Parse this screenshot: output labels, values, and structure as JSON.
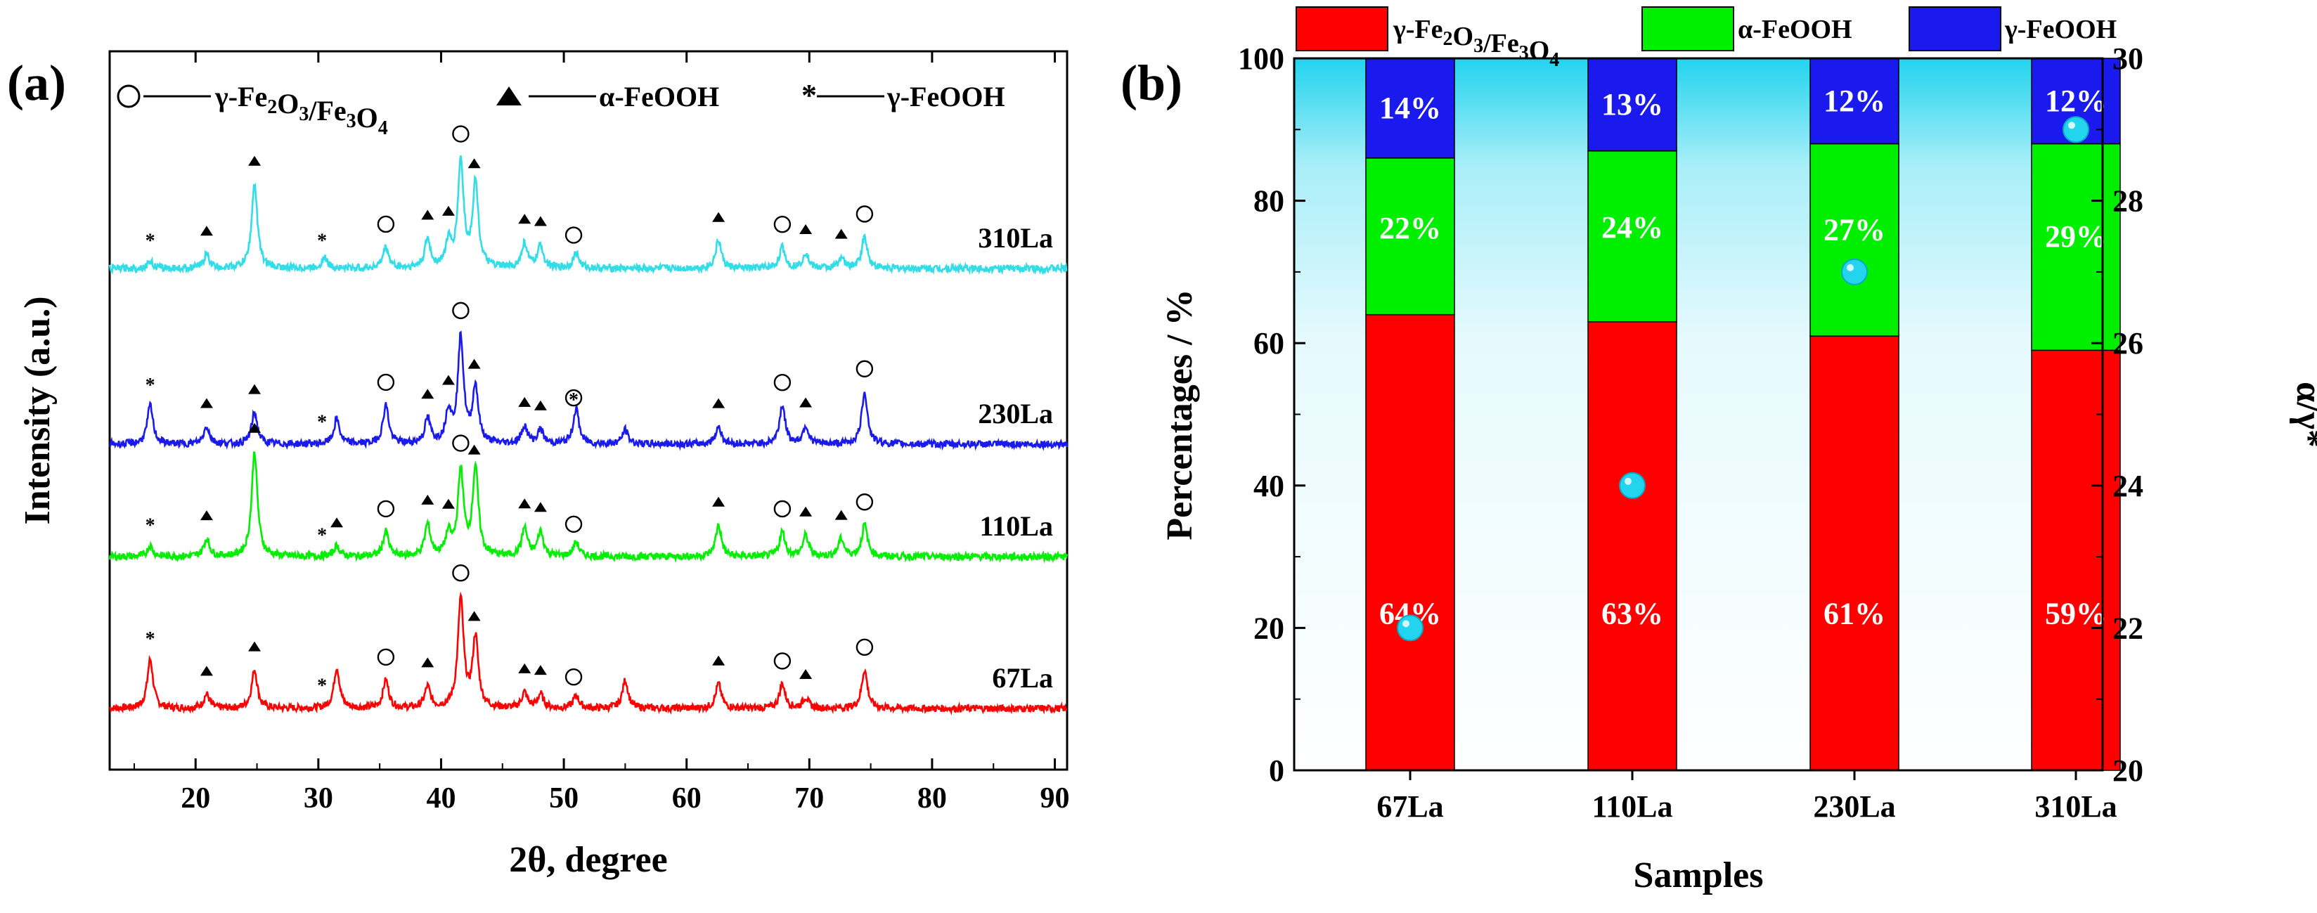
{
  "chart_data": [
    {
      "panel": "(a)",
      "type": "line",
      "xlabel": "2θ, degree",
      "ylabel": "Intensity (a.u.)",
      "xlim": [
        13,
        91
      ],
      "xticks": [
        20,
        30,
        40,
        50,
        60,
        70,
        80,
        90
      ],
      "legend": [
        {
          "symbol": "circle",
          "label": "γ-Fe2O3/Fe3O4"
        },
        {
          "symbol": "triangle",
          "label": "α-FeOOH"
        },
        {
          "symbol": "star",
          "label": "γ-FeOOH"
        }
      ],
      "peak_positions": {
        "circle": [
          35.5,
          41.6,
          50.8,
          67.8,
          74.5
        ],
        "triangle": [
          20.9,
          24.8,
          38.9,
          40.6,
          42.7,
          46.8,
          48.1,
          62.6,
          69.7,
          72.6
        ],
        "star": [
          16.3,
          30.3
        ]
      },
      "series": [
        {
          "name": "67La",
          "color": "#ff0000",
          "offset": 0,
          "peaks": [
            [
              16.3,
              70
            ],
            [
              20.9,
              20
            ],
            [
              24.8,
              55
            ],
            [
              31.5,
              58
            ],
            [
              35.5,
              40
            ],
            [
              38.9,
              30
            ],
            [
              41.6,
              155
            ],
            [
              42.8,
              100
            ],
            [
              46.8,
              22
            ],
            [
              48.1,
              20
            ],
            [
              51.0,
              18
            ],
            [
              55.0,
              40
            ],
            [
              62.6,
              35
            ],
            [
              67.8,
              35
            ],
            [
              69.7,
              15
            ],
            [
              74.5,
              55
            ]
          ],
          "markers": [
            {
              "s": "star",
              "x": 16.3
            },
            {
              "s": "triangle",
              "x": 20.9
            },
            {
              "s": "triangle",
              "x": 24.8
            },
            {
              "s": "star",
              "x": 30.3
            },
            {
              "s": "circle",
              "x": 35.5
            },
            {
              "s": "triangle",
              "x": 38.9
            },
            {
              "s": "circle",
              "x": 41.6
            },
            {
              "s": "triangle",
              "x": 42.7
            },
            {
              "s": "triangle",
              "x": 46.8
            },
            {
              "s": "triangle",
              "x": 48.1
            },
            {
              "s": "circle",
              "x": 50.8
            },
            {
              "s": "triangle",
              "x": 62.6
            },
            {
              "s": "circle",
              "x": 67.8
            },
            {
              "s": "triangle",
              "x": 69.7
            },
            {
              "s": "circle",
              "x": 74.5
            }
          ]
        },
        {
          "name": "110La",
          "color": "#00ee00",
          "offset": 1,
          "peaks": [
            [
              16.3,
              15
            ],
            [
              20.9,
              25
            ],
            [
              24.8,
              150
            ],
            [
              31.5,
              15
            ],
            [
              35.5,
              35
            ],
            [
              38.9,
              45
            ],
            [
              40.6,
              30
            ],
            [
              41.6,
              120
            ],
            [
              42.8,
              125
            ],
            [
              46.8,
              40
            ],
            [
              48.1,
              35
            ],
            [
              51.0,
              20
            ],
            [
              62.6,
              45
            ],
            [
              67.8,
              35
            ],
            [
              69.7,
              30
            ],
            [
              72.6,
              25
            ],
            [
              74.5,
              45
            ]
          ],
          "markers": [
            {
              "s": "star",
              "x": 16.3
            },
            {
              "s": "triangle",
              "x": 20.9
            },
            {
              "s": "triangle",
              "x": 24.8
            },
            {
              "s": "star",
              "x": 30.3
            },
            {
              "s": "triangle",
              "x": 31.5
            },
            {
              "s": "circle",
              "x": 35.5
            },
            {
              "s": "triangle",
              "x": 38.9
            },
            {
              "s": "triangle",
              "x": 40.6
            },
            {
              "s": "circle",
              "x": 41.6
            },
            {
              "s": "triangle",
              "x": 42.7
            },
            {
              "s": "triangle",
              "x": 46.8
            },
            {
              "s": "triangle",
              "x": 48.1
            },
            {
              "s": "circle",
              "x": 50.8
            },
            {
              "s": "triangle",
              "x": 62.6
            },
            {
              "s": "circle",
              "x": 67.8
            },
            {
              "s": "triangle",
              "x": 69.7
            },
            {
              "s": "triangle",
              "x": 72.6
            },
            {
              "s": "circle",
              "x": 74.5
            }
          ]
        },
        {
          "name": "230La",
          "color": "#1a1aee",
          "offset": 2,
          "peaks": [
            [
              16.3,
              55
            ],
            [
              20.9,
              25
            ],
            [
              24.8,
              45
            ],
            [
              31.5,
              35
            ],
            [
              35.5,
              55
            ],
            [
              38.9,
              35
            ],
            [
              40.6,
              45
            ],
            [
              41.6,
              150
            ],
            [
              42.8,
              80
            ],
            [
              46.8,
              25
            ],
            [
              48.1,
              20
            ],
            [
              51.0,
              50
            ],
            [
              55.0,
              20
            ],
            [
              62.6,
              25
            ],
            [
              67.8,
              55
            ],
            [
              69.7,
              25
            ],
            [
              74.5,
              75
            ]
          ],
          "markers": [
            {
              "s": "star",
              "x": 16.3
            },
            {
              "s": "triangle",
              "x": 20.9
            },
            {
              "s": "triangle",
              "x": 24.8
            },
            {
              "s": "star",
              "x": 30.3
            },
            {
              "s": "circle",
              "x": 35.5
            },
            {
              "s": "triangle",
              "x": 38.9
            },
            {
              "s": "triangle",
              "x": 40.6
            },
            {
              "s": "circle",
              "x": 41.6
            },
            {
              "s": "triangle",
              "x": 42.7
            },
            {
              "s": "triangle",
              "x": 46.8
            },
            {
              "s": "triangle",
              "x": 48.1
            },
            {
              "s": "circle",
              "x": 50.8
            },
            {
              "s": "star",
              "x": 50.8
            },
            {
              "s": "triangle",
              "x": 62.6
            },
            {
              "s": "circle",
              "x": 67.8
            },
            {
              "s": "triangle",
              "x": 69.7
            },
            {
              "s": "circle",
              "x": 74.5
            }
          ]
        },
        {
          "name": "310La",
          "color": "#33dde8",
          "offset": 3,
          "peaks": [
            [
              16.3,
              10
            ],
            [
              20.9,
              20
            ],
            [
              24.8,
              120
            ],
            [
              30.5,
              15
            ],
            [
              35.5,
              30
            ],
            [
              38.9,
              40
            ],
            [
              40.6,
              35
            ],
            [
              41.6,
              150
            ],
            [
              42.8,
              120
            ],
            [
              46.8,
              35
            ],
            [
              48.1,
              32
            ],
            [
              51.0,
              22
            ],
            [
              62.6,
              40
            ],
            [
              67.8,
              30
            ],
            [
              69.7,
              22
            ],
            [
              72.6,
              15
            ],
            [
              74.5,
              45
            ]
          ],
          "markers": [
            {
              "s": "star",
              "x": 16.3
            },
            {
              "s": "triangle",
              "x": 20.9
            },
            {
              "s": "triangle",
              "x": 24.8
            },
            {
              "s": "star",
              "x": 30.3
            },
            {
              "s": "circle",
              "x": 35.5
            },
            {
              "s": "triangle",
              "x": 38.9
            },
            {
              "s": "triangle",
              "x": 40.6
            },
            {
              "s": "circle",
              "x": 41.6
            },
            {
              "s": "triangle",
              "x": 42.7
            },
            {
              "s": "triangle",
              "x": 46.8
            },
            {
              "s": "triangle",
              "x": 48.1
            },
            {
              "s": "circle",
              "x": 50.8
            },
            {
              "s": "triangle",
              "x": 62.6
            },
            {
              "s": "circle",
              "x": 67.8
            },
            {
              "s": "triangle",
              "x": 69.7
            },
            {
              "s": "triangle",
              "x": 72.6
            },
            {
              "s": "circle",
              "x": 74.5
            }
          ]
        }
      ]
    },
    {
      "panel": "(b)",
      "type": "bar",
      "stacked": true,
      "xlabel": "Samples",
      "ylabel": "Percentages / %",
      "y2label": "α/γ*",
      "ylim": [
        0,
        100
      ],
      "yticks": [
        0,
        20,
        40,
        60,
        80,
        100
      ],
      "y2lim": [
        20,
        30
      ],
      "y2ticks": [
        20,
        22,
        24,
        26,
        28,
        30
      ],
      "categories": [
        "67La",
        "110La",
        "230La",
        "310La"
      ],
      "series": [
        {
          "name": "γ-Fe2O3/Fe3O4",
          "color": "#ff0000",
          "values": [
            64,
            63,
            61,
            59
          ],
          "labels": [
            "64%",
            "63%",
            "61%",
            "59%"
          ]
        },
        {
          "name": "α-FeOOH",
          "color": "#00ee00",
          "values": [
            22,
            24,
            27,
            29
          ],
          "labels": [
            "22%",
            "24%",
            "27%",
            "29%"
          ]
        },
        {
          "name": "γ-FeOOH",
          "color": "#1a1aee",
          "values": [
            14,
            13,
            12,
            12
          ],
          "labels": [
            "14%",
            "13%",
            "12%",
            "12%"
          ]
        }
      ],
      "ratio_series": {
        "name": "α/γ*",
        "color": "#22d4ee",
        "values": [
          22,
          24,
          27,
          29
        ]
      },
      "legend": [
        "γ-Fe2O3/Fe3O4",
        "α-FeOOH",
        "γ-FeOOH"
      ]
    }
  ],
  "panel_labels": {
    "a": "(a)",
    "b": "(b)"
  }
}
